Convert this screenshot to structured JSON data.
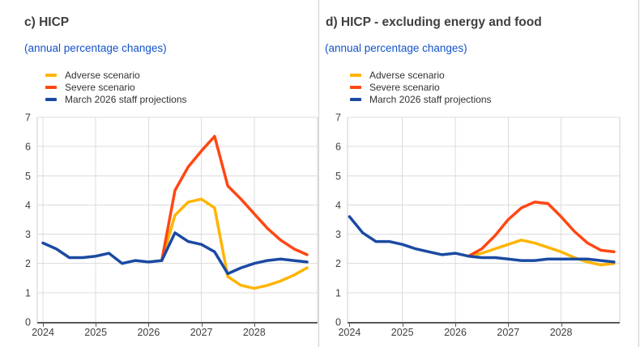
{
  "colors": {
    "adverse": "#ffb400",
    "severe": "#ff4713",
    "projections": "#1b4aa2",
    "subtitle_text": "#1353cb",
    "title_text": "#3f3f3f",
    "axis_text": "#3f3f3f",
    "legend_text": "#333333",
    "gridline": "#dcdcdc",
    "plot_frame": "#cfcfcf",
    "axis_line": "#595959",
    "panel_divider": "#cfcfcf",
    "background": "#ffffff"
  },
  "chart_data": [
    {
      "type": "line",
      "title": "c) HICP",
      "subtitle": "(annual percentage changes)",
      "ylabel": "",
      "xlabel": "",
      "ylim": [
        0,
        7
      ],
      "y_ticks": [
        0,
        1,
        2,
        3,
        4,
        5,
        6,
        7
      ],
      "xlim": [
        2023.9,
        2029.2
      ],
      "x_ticks": [
        2024,
        2025,
        2026,
        2027,
        2028
      ],
      "x_tick_labels": [
        "2024",
        "2025",
        "2026",
        "2027",
        "2028"
      ],
      "grid": true,
      "legend_position": "top-left",
      "frequency": "quarterly",
      "series": [
        {
          "name": "Adverse scenario",
          "color_key": "adverse",
          "x_start": 2026.25,
          "x_step": 0.25,
          "values": [
            2.1,
            3.65,
            4.1,
            4.2,
            3.9,
            1.55,
            1.25,
            1.15,
            1.25,
            1.4,
            1.6,
            1.85
          ]
        },
        {
          "name": "Severe scenario",
          "color_key": "severe",
          "x_start": 2026.25,
          "x_step": 0.25,
          "values": [
            2.1,
            4.5,
            5.3,
            5.85,
            6.35,
            4.65,
            4.2,
            3.7,
            3.2,
            2.8,
            2.5,
            2.3
          ]
        },
        {
          "name": "March 2026 staff projections",
          "color_key": "projections",
          "x_start": 2024.0,
          "x_step": 0.25,
          "values": [
            2.7,
            2.5,
            2.2,
            2.2,
            2.25,
            2.35,
            2.0,
            2.1,
            2.05,
            2.1,
            3.05,
            2.75,
            2.65,
            2.4,
            1.65,
            1.85,
            2.0,
            2.1,
            2.15,
            2.1,
            2.05
          ]
        }
      ]
    },
    {
      "type": "line",
      "title": "d) HICP - excluding energy and food",
      "subtitle": "(annual percentage changes)",
      "ylabel": "",
      "xlabel": "",
      "ylim": [
        0,
        7
      ],
      "y_ticks": [
        0,
        1,
        2,
        3,
        4,
        5,
        6,
        7
      ],
      "xlim": [
        2023.9,
        2029.1
      ],
      "x_ticks": [
        2024,
        2025,
        2026,
        2027,
        2028
      ],
      "x_tick_labels": [
        "2024",
        "2025",
        "2026",
        "2027",
        "2028"
      ],
      "grid": true,
      "legend_position": "top-left",
      "frequency": "quarterly",
      "series": [
        {
          "name": "Adverse scenario",
          "color_key": "adverse",
          "x_start": 2026.25,
          "x_step": 0.25,
          "values": [
            2.25,
            2.35,
            2.5,
            2.65,
            2.8,
            2.7,
            2.55,
            2.4,
            2.2,
            2.05,
            1.95,
            2.0
          ]
        },
        {
          "name": "Severe scenario",
          "color_key": "severe",
          "x_start": 2026.25,
          "x_step": 0.25,
          "values": [
            2.25,
            2.5,
            2.95,
            3.5,
            3.9,
            4.1,
            4.05,
            3.6,
            3.1,
            2.7,
            2.45,
            2.4
          ]
        },
        {
          "name": "March 2026 staff projections",
          "color_key": "projections",
          "x_start": 2024.0,
          "x_step": 0.25,
          "values": [
            3.6,
            3.05,
            2.75,
            2.75,
            2.65,
            2.5,
            2.4,
            2.3,
            2.35,
            2.25,
            2.2,
            2.2,
            2.15,
            2.1,
            2.1,
            2.15,
            2.15,
            2.15,
            2.15,
            2.1,
            2.05
          ]
        }
      ]
    }
  ]
}
